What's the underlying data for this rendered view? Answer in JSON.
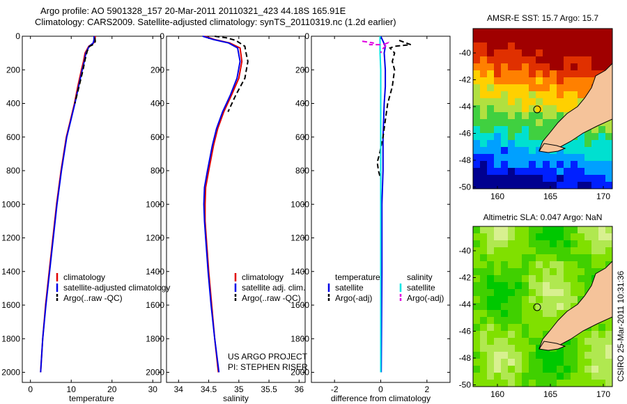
{
  "header": {
    "line1": "Argo profile: AO 5901328_157 20-Mar-2011 20110321_423 44.18S 165.91E",
    "line2": "Climatology: CARS2009. Satellite-adjusted climatology: synTS_20110319.nc (1.2d earlier)"
  },
  "credit": "CSIRO 25-Mar-2011 10:31:36",
  "colors": {
    "red": "#e00000",
    "blue": "#0000e6",
    "black": "#000000",
    "cyan": "#00e5e5",
    "magenta": "#e000e0",
    "land": "#f5c39a"
  },
  "chart_data": [
    {
      "type": "line",
      "id": "temperature",
      "xlabel": "temperature",
      "ylabel": "",
      "xlim": [
        -2,
        32
      ],
      "ylim": [
        2060,
        0
      ],
      "xticks": [
        0,
        10,
        20,
        30
      ],
      "yticks": [
        0,
        200,
        400,
        600,
        800,
        1000,
        1200,
        1400,
        1600,
        1800,
        2000
      ],
      "legend": [
        "climatology",
        "satellite-adjusted climatology",
        "Argo(..raw -QC)"
      ],
      "legend_placement": "lower-right",
      "series": [
        {
          "name": "climatology",
          "color": "red",
          "dash": false,
          "points": [
            [
              15.9,
              0
            ],
            [
              15.8,
              20
            ],
            [
              15.5,
              40
            ],
            [
              14.3,
              60
            ],
            [
              13.4,
              100
            ],
            [
              13.0,
              150
            ],
            [
              12.5,
              200
            ],
            [
              11.6,
              300
            ],
            [
              10.8,
              400
            ],
            [
              9.8,
              500
            ],
            [
              8.8,
              600
            ],
            [
              7.5,
              800
            ],
            [
              6.4,
              1000
            ],
            [
              5.5,
              1200
            ],
            [
              4.6,
              1400
            ],
            [
              3.7,
              1600
            ],
            [
              3.0,
              1800
            ],
            [
              2.5,
              2000
            ]
          ]
        },
        {
          "name": "satellite-adjusted climatology",
          "color": "blue",
          "dash": false,
          "points": [
            [
              15.6,
              0
            ],
            [
              15.6,
              20
            ],
            [
              15.4,
              40
            ],
            [
              14.4,
              60
            ],
            [
              13.6,
              100
            ],
            [
              13.2,
              150
            ],
            [
              12.7,
              200
            ],
            [
              11.8,
              300
            ],
            [
              10.9,
              400
            ],
            [
              9.9,
              500
            ],
            [
              8.9,
              600
            ],
            [
              7.6,
              800
            ],
            [
              6.5,
              1000
            ],
            [
              5.6,
              1200
            ],
            [
              4.7,
              1400
            ],
            [
              3.8,
              1600
            ],
            [
              3.0,
              1800
            ],
            [
              2.5,
              2000
            ]
          ]
        },
        {
          "name": "Argo(..raw -QC)",
          "color": "black",
          "dash": true,
          "points": [
            [
              15.8,
              10
            ],
            [
              15.9,
              30
            ],
            [
              15.7,
              45
            ],
            [
              14.5,
              60
            ],
            [
              13.9,
              90
            ],
            [
              13.4,
              140
            ],
            [
              12.9,
              200
            ],
            [
              11.9,
              300
            ],
            [
              10.9,
              400
            ]
          ]
        }
      ]
    },
    {
      "type": "line",
      "id": "salinity",
      "xlabel": "salinity",
      "ylabel": "",
      "xlim": [
        33.8,
        36.1
      ],
      "ylim": [
        2060,
        0
      ],
      "xticks": [
        34,
        34.5,
        35,
        35.5,
        36
      ],
      "yticks": [
        0,
        200,
        400,
        600,
        800,
        1000,
        1200,
        1400,
        1600,
        1800,
        2000
      ],
      "legend": [
        "climatology",
        "satellite adj. clim.",
        "Argo(..raw -QC)"
      ],
      "legend_placement": "lower-right",
      "series": [
        {
          "name": "climatology",
          "color": "red",
          "dash": false,
          "points": [
            [
              34.43,
              0
            ],
            [
              34.6,
              20
            ],
            [
              34.85,
              40
            ],
            [
              35.02,
              70
            ],
            [
              35.05,
              150
            ],
            [
              35.0,
              250
            ],
            [
              34.88,
              350
            ],
            [
              34.75,
              450
            ],
            [
              34.65,
              550
            ],
            [
              34.58,
              650
            ],
            [
              34.5,
              800
            ],
            [
              34.45,
              900
            ],
            [
              34.44,
              1000
            ],
            [
              34.44,
              1100
            ],
            [
              34.46,
              1200
            ],
            [
              34.5,
              1400
            ],
            [
              34.55,
              1600
            ],
            [
              34.6,
              1800
            ],
            [
              34.66,
              2000
            ]
          ]
        },
        {
          "name": "satellite adj. clim.",
          "color": "blue",
          "dash": false,
          "points": [
            [
              34.4,
              0
            ],
            [
              34.58,
              20
            ],
            [
              34.83,
              40
            ],
            [
              34.98,
              70
            ],
            [
              35.02,
              150
            ],
            [
              34.97,
              250
            ],
            [
              34.86,
              350
            ],
            [
              34.73,
              450
            ],
            [
              34.63,
              550
            ],
            [
              34.56,
              650
            ],
            [
              34.48,
              800
            ],
            [
              34.43,
              900
            ],
            [
              34.42,
              1000
            ],
            [
              34.43,
              1100
            ],
            [
              34.45,
              1200
            ],
            [
              34.49,
              1400
            ],
            [
              34.54,
              1600
            ],
            [
              34.6,
              1800
            ],
            [
              34.67,
              2000
            ]
          ]
        },
        {
          "name": "Argo(..raw -QC)",
          "color": "black",
          "dash": true,
          "points": [
            [
              34.6,
              0
            ],
            [
              34.8,
              10
            ],
            [
              34.95,
              25
            ],
            [
              35.1,
              60
            ],
            [
              35.12,
              100
            ],
            [
              35.15,
              150
            ],
            [
              35.1,
              250
            ],
            [
              34.95,
              350
            ],
            [
              34.82,
              450
            ]
          ]
        }
      ]
    },
    {
      "type": "line",
      "id": "difference",
      "xlabel": "difference from climatology",
      "ylabel": "",
      "xlim": [
        -3,
        3
      ],
      "ylim": [
        2060,
        0
      ],
      "xticks": [
        -2,
        0,
        2
      ],
      "yticks": [
        0,
        200,
        400,
        600,
        800,
        1000,
        1200,
        1400,
        1600,
        1800,
        2000
      ],
      "legend": [
        "temperature",
        "satellite",
        "Argo(-adj)",
        "salinity",
        "satellite",
        "Argo(-adj)"
      ],
      "legend_placement": "lower-center",
      "series": [
        {
          "name": "satellite",
          "group": "temperature",
          "color": "blue",
          "dash": false,
          "points": [
            [
              0,
              0
            ],
            [
              0.1,
              30
            ],
            [
              0.2,
              60
            ],
            [
              0.15,
              100
            ],
            [
              0.2,
              200
            ],
            [
              0.2,
              300
            ],
            [
              0.15,
              400
            ],
            [
              0.1,
              600
            ],
            [
              0.1,
              800
            ],
            [
              0.05,
              1000
            ],
            [
              0.05,
              1400
            ],
            [
              0.02,
              2000
            ]
          ]
        },
        {
          "name": "Argo(-adj)",
          "group": "temperature",
          "color": "black",
          "dash": true,
          "points": [
            [
              0.8,
              25
            ],
            [
              1.3,
              50
            ],
            [
              0.6,
              60
            ],
            [
              0.4,
              70
            ],
            [
              0.6,
              100
            ],
            [
              0.5,
              150
            ],
            [
              0.6,
              200
            ],
            [
              0.55,
              250
            ],
            [
              0.5,
              300
            ],
            [
              0.3,
              400
            ],
            [
              0.2,
              500
            ],
            [
              0.1,
              600
            ],
            [
              -0.05,
              700
            ],
            [
              -0.15,
              750
            ],
            [
              -0.1,
              800
            ],
            [
              0,
              850
            ],
            [
              0,
              900
            ]
          ]
        },
        {
          "name": "satellite",
          "group": "salinity",
          "color": "cyan",
          "dash": false,
          "points": [
            [
              -0.03,
              0
            ],
            [
              -0.03,
              100
            ],
            [
              0,
              200
            ],
            [
              0,
              400
            ],
            [
              0,
              600
            ],
            [
              0,
              800
            ],
            [
              0,
              1000
            ],
            [
              0,
              1200
            ],
            [
              0,
              1400
            ],
            [
              0,
              1600
            ],
            [
              0,
              1800
            ],
            [
              0,
              2000
            ]
          ]
        },
        {
          "name": "Argo(-adj)",
          "group": "salinity",
          "color": "magenta",
          "dash": true,
          "points": [
            [
              -0.8,
              30
            ],
            [
              -0.3,
              40
            ],
            [
              -0.5,
              50
            ],
            [
              0.1,
              50
            ],
            [
              0.3,
              40
            ],
            [
              0.2,
              60
            ],
            [
              0.05,
              80
            ],
            [
              0,
              100
            ]
          ]
        }
      ]
    }
  ],
  "maps": [
    {
      "id": "sst",
      "title": "AMSR-E SST: 15.7 Argo: 15.7",
      "xticks": [
        "160",
        "165",
        "170"
      ],
      "yticks": [
        "-40",
        "-42",
        "-44",
        "-46",
        "-48",
        "-50"
      ],
      "palette": [
        "#00008f",
        "#0020ff",
        "#00a0ff",
        "#00e0d0",
        "#40d040",
        "#b0e040",
        "#ffd000",
        "#ff8000",
        "#e03000",
        "#a00000"
      ]
    },
    {
      "id": "sla",
      "title": "Altimetric SLA: 0.047 Argo: NaN",
      "xticks": [
        "160",
        "165",
        "170"
      ],
      "yticks": [
        "-40",
        "-42",
        "-44",
        "-46",
        "-48",
        "-50"
      ],
      "palette": [
        "#00c800",
        "#40d000",
        "#80e000",
        "#b0e850",
        "#d8f090"
      ]
    }
  ],
  "annotation": {
    "line1": "US ARGO PROJECT",
    "line2": "PI: STEPHEN RISER"
  }
}
